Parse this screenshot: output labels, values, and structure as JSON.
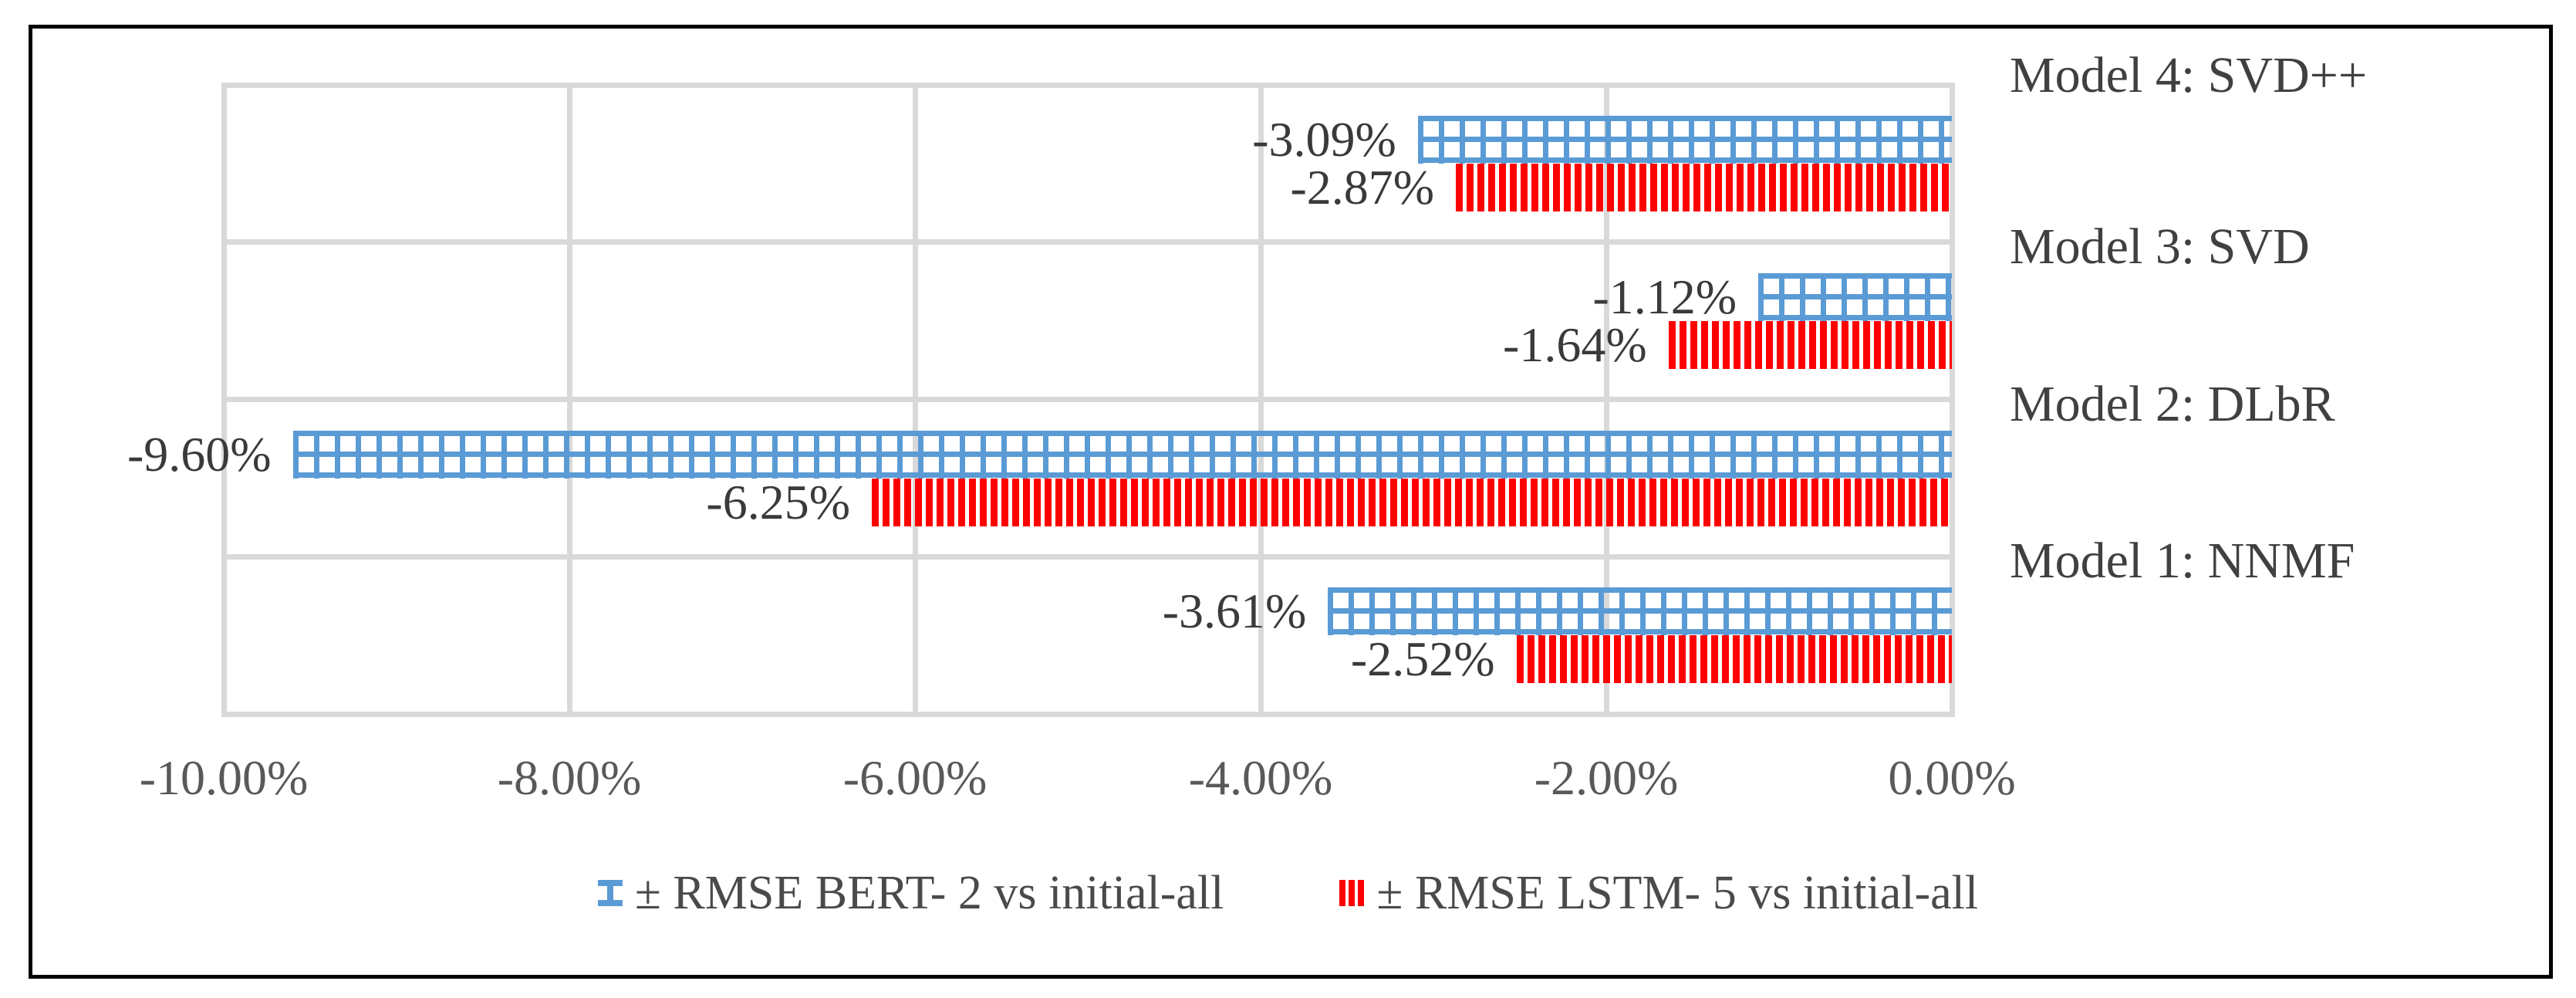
{
  "chart_data": {
    "type": "bar",
    "orientation": "horizontal",
    "title": "",
    "categories": [
      "Model 4: SVD++",
      "Model 3: SVD",
      "Model 2: DLbR",
      "Model 1: NNMF"
    ],
    "series": [
      {
        "id": "bert-2",
        "name": "± RMSE BERT- 2 vs initial-all",
        "color": "#5B9BD5",
        "pattern": "grid",
        "values": [
          -3.09,
          -1.12,
          -9.6,
          -3.61
        ],
        "labels": [
          "-3.09%",
          "-1.12%",
          "-9.60%",
          "-3.61%"
        ]
      },
      {
        "id": "lstm-5",
        "name": "± RMSE LSTM- 5 vs initial-all",
        "color": "#FF0000",
        "pattern": "vertical-stripes",
        "values": [
          -2.87,
          -1.64,
          -6.25,
          -2.52
        ],
        "labels": [
          "-2.87%",
          "-1.64%",
          "-6.25%",
          "-2.52%"
        ]
      }
    ],
    "x_axis": {
      "min": -10,
      "max": 0,
      "ticks": [
        {
          "value": -10,
          "label": "-10.00%"
        },
        {
          "value": -8,
          "label": "-8.00%"
        },
        {
          "value": -6,
          "label": "-6.00%"
        },
        {
          "value": -4,
          "label": "-4.00%"
        },
        {
          "value": -2,
          "label": "-2.00%"
        },
        {
          "value": 0,
          "label": "0.00%"
        }
      ]
    },
    "grid": true,
    "legend_position": "bottom",
    "colors": {
      "gridline": "#D9D9D9",
      "tick_text": "#595959",
      "data_label_text": "#3a3a3a",
      "category_text": "#404040",
      "legend_text": "#4a4a4a",
      "frame_border": "#000000",
      "background": "#ffffff"
    }
  }
}
